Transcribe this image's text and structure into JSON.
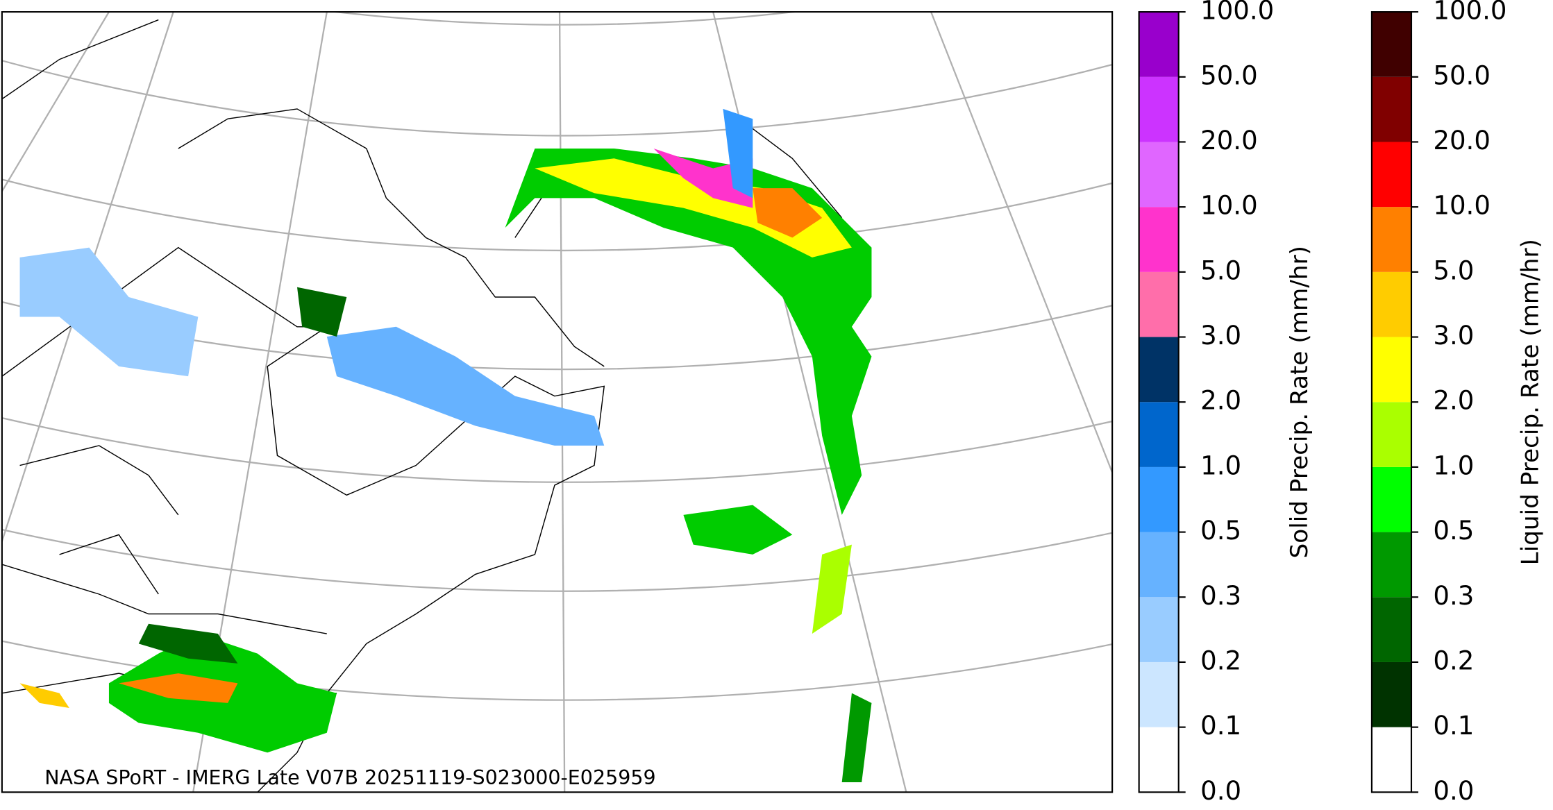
{
  "caption": "NASA SPoRT - IMERG Late V07B 20251119-S023000-E025959",
  "colorbars": [
    {
      "label": "Solid Precip. Rate (mm/hr)",
      "ticks": [
        {
          "value": 0,
          "label": "0.0"
        },
        {
          "value": 0.1,
          "label": "0.1"
        },
        {
          "value": 0.2,
          "label": "0.2"
        },
        {
          "value": 0.3,
          "label": "0.3"
        },
        {
          "value": 0.5,
          "label": "0.5"
        },
        {
          "value": 1,
          "label": "1.0"
        },
        {
          "value": 2,
          "label": "2.0"
        },
        {
          "value": 3,
          "label": "3.0"
        },
        {
          "value": 5,
          "label": "5.0"
        },
        {
          "value": 10,
          "label": "10.0"
        },
        {
          "value": 20,
          "label": "20.0"
        },
        {
          "value": 50,
          "label": "50.0"
        },
        {
          "value": 100,
          "label": "100.0"
        }
      ],
      "colors": [
        "#ffffff",
        "#cce6ff",
        "#99ccff",
        "#66b2ff",
        "#3399ff",
        "#0066cc",
        "#003366",
        "#ff6eaa",
        "#ff33cc",
        "#e066ff",
        "#cc33ff",
        "#9900cc"
      ]
    },
    {
      "label": "Liquid Precip. Rate (mm/hr)",
      "ticks": [
        {
          "value": 0,
          "label": "0.0"
        },
        {
          "value": 0.1,
          "label": "0.1"
        },
        {
          "value": 0.2,
          "label": "0.2"
        },
        {
          "value": 0.3,
          "label": "0.3"
        },
        {
          "value": 0.5,
          "label": "0.5"
        },
        {
          "value": 1,
          "label": "1.0"
        },
        {
          "value": 2,
          "label": "2.0"
        },
        {
          "value": 3,
          "label": "3.0"
        },
        {
          "value": 5,
          "label": "5.0"
        },
        {
          "value": 10,
          "label": "10.0"
        },
        {
          "value": 20,
          "label": "20.0"
        },
        {
          "value": 50,
          "label": "50.0"
        },
        {
          "value": 100,
          "label": "100.0"
        }
      ],
      "colors": [
        "#ffffff",
        "#003300",
        "#006600",
        "#009900",
        "#00ff00",
        "#aaff00",
        "#ffff00",
        "#ffcc00",
        "#ff8000",
        "#ff0000",
        "#800000",
        "#400000"
      ]
    }
  ]
}
